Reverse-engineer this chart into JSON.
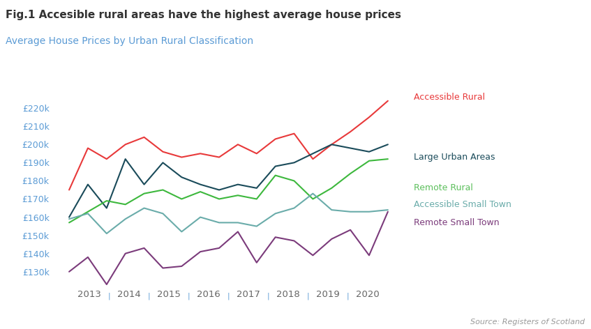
{
  "title_bold": "Fig.1 Accesible rural areas have the highest average house prices",
  "subtitle": "Average House Prices by Urban Rural Classification",
  "subtitle_color": "#5b9bd5",
  "source_text": "Source: Registers of Scotland",
  "ylabel_ticks": [
    "£130k",
    "£140k",
    "£150k",
    "£160k",
    "£170k",
    "£180k",
    "£190k",
    "£200k",
    "£210k",
    "£220k"
  ],
  "ytick_values": [
    130000,
    140000,
    150000,
    160000,
    170000,
    180000,
    190000,
    200000,
    210000,
    220000
  ],
  "ylim": [
    122000,
    227000
  ],
  "x_year_labels": [
    "2013",
    "2014",
    "2015",
    "2016",
    "2017",
    "2018",
    "2019",
    "2020"
  ],
  "series": [
    {
      "label": "Accessible Rural",
      "color": "#e8393a",
      "label_color": "#e8393a",
      "values": [
        175000,
        198000,
        192000,
        200000,
        204000,
        196000,
        193000,
        195000,
        193000,
        200000,
        195000,
        203000,
        206000,
        192000,
        200000,
        207000,
        215000,
        224000
      ]
    },
    {
      "label": "Large Urban Areas",
      "color": "#1a4b5a",
      "label_color": "#1a4b5a",
      "values": [
        160000,
        178000,
        165000,
        192000,
        178000,
        190000,
        182000,
        178000,
        175000,
        178000,
        176000,
        188000,
        190000,
        195000,
        200000,
        198000,
        196000,
        200000
      ]
    },
    {
      "label": "Remote Rural",
      "color": "#3db83d",
      "label_color": "#5bbf5b",
      "values": [
        157000,
        163000,
        169000,
        167000,
        173000,
        175000,
        170000,
        174000,
        170000,
        172000,
        170000,
        183000,
        180000,
        170000,
        176000,
        184000,
        191000,
        192000
      ]
    },
    {
      "label": "Accessible Small Town",
      "color": "#6aacaa",
      "label_color": "#6aacaa",
      "values": [
        159000,
        162000,
        151000,
        159000,
        165000,
        162000,
        152000,
        160000,
        157000,
        157000,
        155000,
        162000,
        165000,
        173000,
        164000,
        163000,
        163000,
        164000
      ]
    },
    {
      "label": "Remote Small Town",
      "color": "#7b3b7b",
      "label_color": "#7b3b7b",
      "values": [
        130000,
        138000,
        123000,
        140000,
        143000,
        132000,
        133000,
        141000,
        143000,
        152000,
        135000,
        149000,
        147000,
        139000,
        148000,
        153000,
        139000,
        163000
      ]
    }
  ],
  "background_color": "#ffffff",
  "tick_color": "#5b9bd5",
  "separator_color": "#5b9bd5",
  "x_label_color": "#666666",
  "title_fontsize": 11,
  "subtitle_fontsize": 10,
  "tick_fontsize": 9,
  "label_fontsize": 9,
  "source_fontsize": 8
}
